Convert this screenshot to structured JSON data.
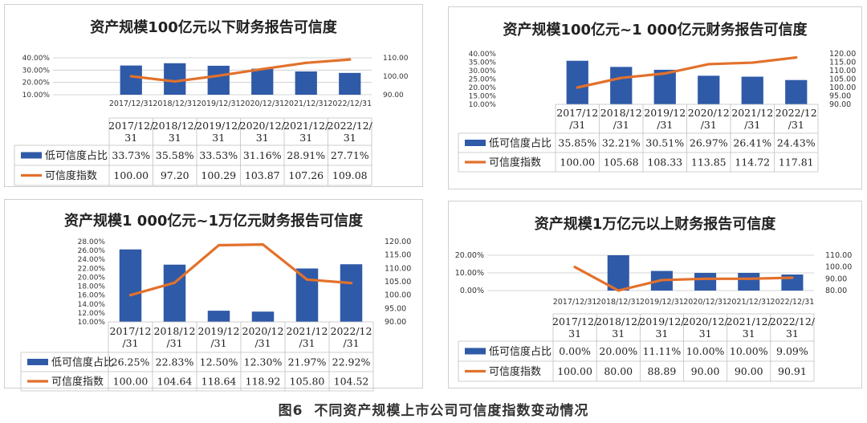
{
  "caption": {
    "figure_no": "图6",
    "text": "不同资产规模上市公司可信度指数变动情况"
  },
  "colors": {
    "bar": "#2f5aa8",
    "line": "#e2712c",
    "grid": "#c9c9c9",
    "border": "#d0d0d0"
  },
  "chart_data": [
    {
      "type": "bar-line",
      "title": "资产规模100亿元以下财务报告可信度",
      "categories": [
        "2017/12/31",
        "2018/12/31",
        "2019/12/31",
        "2020/12/31",
        "2021/12/31",
        "2022/12/31"
      ],
      "table_headers": [
        [
          "2017/12/",
          "31"
        ],
        [
          "2018/12/",
          "31"
        ],
        [
          "2019/12/",
          "31"
        ],
        [
          "2020/12/",
          "31"
        ],
        [
          "2021/12/",
          "31"
        ],
        [
          "2022/12/",
          "31"
        ]
      ],
      "series": [
        {
          "name": "低可信度占比",
          "kind": "bar",
          "axis": "left",
          "values": [
            33.73,
            35.58,
            33.53,
            31.16,
            28.91,
            27.71
          ],
          "labels": [
            "33.73%",
            "35.58%",
            "33.53%",
            "31.16%",
            "28.91%",
            "27.71%"
          ]
        },
        {
          "name": "可信度指数",
          "kind": "line",
          "axis": "right",
          "values": [
            100.0,
            97.2,
            100.29,
            103.87,
            107.26,
            109.08
          ],
          "labels": [
            "100.00",
            "97.20",
            "100.29",
            "103.87",
            "107.26",
            "109.08"
          ]
        }
      ],
      "left_ticks": [
        "40.00%",
        "30.00%",
        "20.00%",
        "10.00%"
      ],
      "ylim_left": [
        10,
        40
      ],
      "right_ticks": [
        "110.00",
        "100.00",
        "90.00"
      ],
      "ylim_right": [
        90,
        110
      ]
    },
    {
      "type": "bar-line",
      "title": "资产规模100亿元~1 000亿元财务报告可信度",
      "categories": [
        "2017/12/31",
        "2018/12/31",
        "2019/12/31",
        "2020/12/31",
        "2021/12/31",
        "2022/12/31"
      ],
      "table_headers": [
        [
          "2017/12",
          "/31"
        ],
        [
          "2018/12",
          "/31"
        ],
        [
          "2019/12",
          "/31"
        ],
        [
          "2020/12",
          "/31"
        ],
        [
          "2021/12",
          "/31"
        ],
        [
          "2022/12",
          "/31"
        ]
      ],
      "series": [
        {
          "name": "低可信度占比",
          "kind": "bar",
          "axis": "left",
          "values": [
            35.85,
            32.21,
            30.51,
            26.97,
            26.41,
            24.43
          ],
          "labels": [
            "35.85%",
            "32.21%",
            "30.51%",
            "26.97%",
            "26.41%",
            "24.43%"
          ]
        },
        {
          "name": "可信度指数",
          "kind": "line",
          "axis": "right",
          "values": [
            100.0,
            105.68,
            108.33,
            113.85,
            114.72,
            117.81
          ],
          "labels": [
            "100.00",
            "105.68",
            "108.33",
            "113.85",
            "114.72",
            "117.81"
          ]
        }
      ],
      "left_ticks": [
        "40.00%",
        "35.00%",
        "30.00%",
        "25.00%",
        "20.00%",
        "15.00%",
        "10.00%"
      ],
      "ylim_left": [
        10,
        40
      ],
      "right_ticks": [
        "120.00",
        "115.00",
        "110.00",
        "105.00",
        "100.00",
        "95.00",
        "90.00"
      ],
      "ylim_right": [
        90,
        120
      ]
    },
    {
      "type": "bar-line",
      "title": "资产规模1 000亿元~1万亿元财务报告可信度",
      "categories": [
        "2017/12/31",
        "2018/12/31",
        "2019/12/31",
        "2020/12/31",
        "2021/12/31",
        "2022/12/31"
      ],
      "table_headers": [
        [
          "2017/12",
          "/31"
        ],
        [
          "2018/12",
          "/31"
        ],
        [
          "2019/12",
          "/31"
        ],
        [
          "2020/12",
          "/31"
        ],
        [
          "2021/12",
          "/31"
        ],
        [
          "2022/12",
          "/31"
        ]
      ],
      "series": [
        {
          "name": "低可信度占比",
          "kind": "bar",
          "axis": "left",
          "values": [
            26.25,
            22.83,
            12.5,
            12.3,
            21.97,
            22.92
          ],
          "labels": [
            "26.25%",
            "22.83%",
            "12.50%",
            "12.30%",
            "21.97%",
            "22.92%"
          ]
        },
        {
          "name": "可信度指数",
          "kind": "line",
          "axis": "right",
          "values": [
            100.0,
            104.64,
            118.64,
            118.92,
            105.8,
            104.52
          ],
          "labels": [
            "100.00",
            "104.64",
            "118.64",
            "118.92",
            "105.80",
            "104.52"
          ]
        }
      ],
      "left_ticks": [
        "28.00%",
        "26.00%",
        "24.00%",
        "22.00%",
        "20.00%",
        "18.00%",
        "16.00%",
        "14.00%",
        "12.00%",
        "10.00%"
      ],
      "ylim_left": [
        10,
        28
      ],
      "right_ticks": [
        "120.00",
        "115.00",
        "110.00",
        "105.00",
        "100.00",
        "95.00",
        "90.00"
      ],
      "ylim_right": [
        90,
        120
      ]
    },
    {
      "type": "bar-line",
      "title": "资产规模1万亿元以上财务报告可信度",
      "categories": [
        "2017/12/31",
        "2018/12/31",
        "2019/12/31",
        "2020/12/31",
        "2021/12/31",
        "2022/12/31"
      ],
      "table_headers": [
        [
          "2017/12/",
          "31"
        ],
        [
          "2018/12/",
          "31"
        ],
        [
          "2019/12/",
          "31"
        ],
        [
          "2020/12/",
          "31"
        ],
        [
          "2021/12/",
          "31"
        ],
        [
          "2022/12/",
          "31"
        ]
      ],
      "series": [
        {
          "name": "低可信度占比",
          "kind": "bar",
          "axis": "left",
          "values": [
            0.0,
            20.0,
            11.11,
            10.0,
            10.0,
            9.09
          ],
          "labels": [
            "0.00%",
            "20.00%",
            "11.11%",
            "10.00%",
            "10.00%",
            "9.09%"
          ]
        },
        {
          "name": "可信度指数",
          "kind": "line",
          "axis": "right",
          "values": [
            100.0,
            80.0,
            88.89,
            90.0,
            90.0,
            90.91
          ],
          "labels": [
            "100.00",
            "80.00",
            "88.89",
            "90.00",
            "90.00",
            "90.91"
          ]
        }
      ],
      "left_ticks": [
        "20.00%",
        "10.00%",
        "0.00%"
      ],
      "ylim_left": [
        0,
        20
      ],
      "right_ticks": [
        "110.00",
        "100.00",
        "90.00",
        "80.00"
      ],
      "ylim_right": [
        80,
        110
      ]
    }
  ]
}
